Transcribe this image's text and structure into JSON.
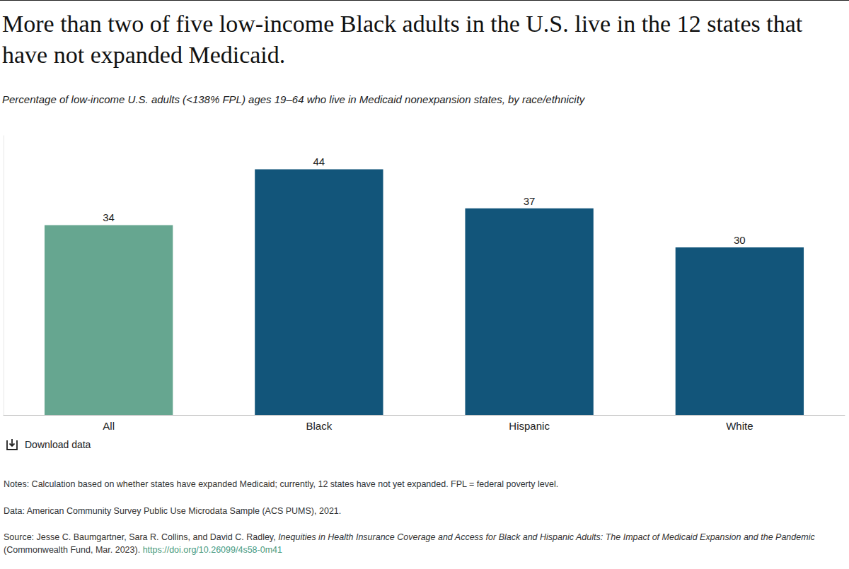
{
  "chart_data": {
    "type": "bar",
    "title": "More than two of five low-income Black adults in the U.S. live in the 12 states that have not expanded Medicaid.",
    "subtitle": "Percentage of low-income U.S. adults (<138% FPL) ages 19–64 who live in Medicaid nonexpansion states, by race/ethnicity",
    "categories": [
      "All",
      "Black",
      "Hispanic",
      "White"
    ],
    "values": [
      34,
      44,
      37,
      30
    ],
    "colors": [
      "#66a690",
      "#12557a",
      "#12557a",
      "#12557a"
    ],
    "ylim": [
      0,
      50
    ],
    "data_labels": true,
    "tick_labels": "x",
    "grid": false,
    "download_label": "Download data",
    "notes": "Notes: Calculation based on whether states have expanded Medicaid; currently, 12 states have not yet expanded. FPL = federal poverty level.",
    "data_note": "Data: American Community Survey Public Use Microdata Sample (ACS PUMS), 2021.",
    "source": {
      "prefix": "Source: Jesse C. Baumgartner, Sara R. Collins, and David C. Radley, ",
      "title": "Inequities in Health Insurance Coverage and Access for Black and Hispanic Adults: The Impact of Medicaid Expansion and the Pandemic",
      "suffix": " (Commonwealth Fund, Mar. 2023). ",
      "link": "https://doi.org/10.26099/4s58-0m41"
    }
  }
}
